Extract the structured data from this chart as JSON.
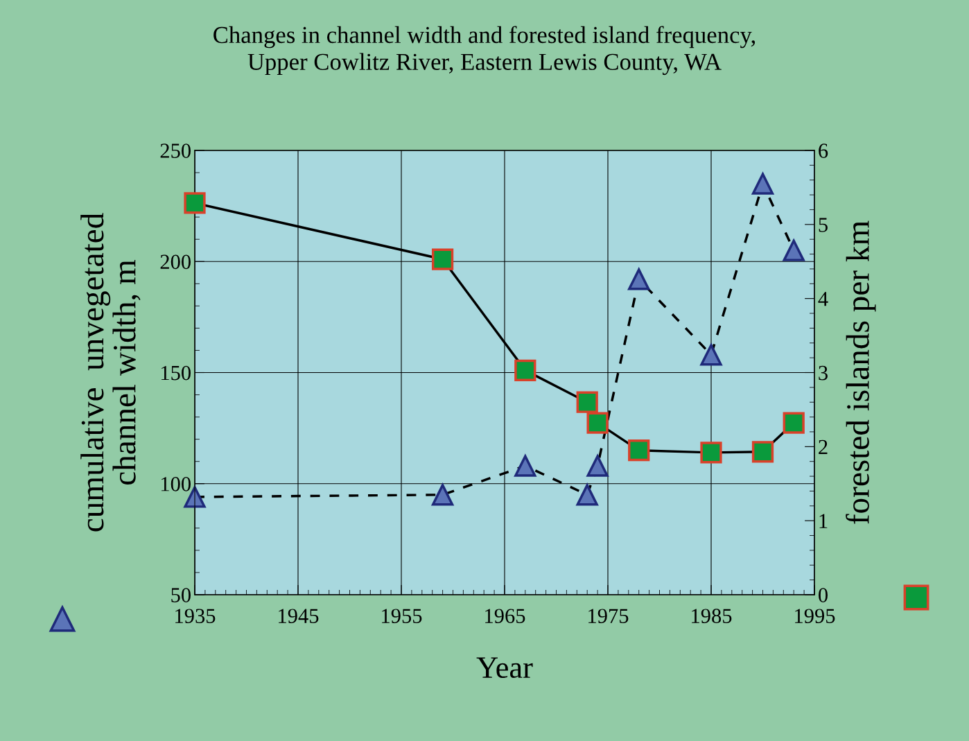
{
  "chart_data": {
    "type": "line",
    "title": "Changes in channel width and forested island frequency,\nUpper Cowlitz River, Eastern Lewis County, WA",
    "xlabel": "Year",
    "ylabel": "cumulative  unvegetated\nchannel width, m",
    "y2label": "forested islands per km",
    "xlim": [
      1935,
      1995
    ],
    "xticks": [
      1935,
      1945,
      1955,
      1965,
      1975,
      1985,
      1995
    ],
    "ylim": [
      50,
      250
    ],
    "yticks": [
      50,
      100,
      150,
      200,
      250
    ],
    "y2lim": [
      0,
      6
    ],
    "y2ticks": [
      0,
      1,
      2,
      3,
      4,
      5,
      6
    ],
    "grid": true,
    "legend": false,
    "series": [
      {
        "color": "#5b74b8",
        "marker": "triangle",
        "line_style": "dashed",
        "x": [
          1935,
          1959,
          1967,
          1973,
          1974,
          1978,
          1985,
          1990,
          1993
        ],
        "values": [
          94,
          95,
          108,
          95,
          108,
          192,
          158,
          235,
          205
        ]
      },
      {
        "color": "#0a9a3c",
        "marker": "square",
        "line_style": "solid",
        "axis": "y2",
        "x": [
          1935,
          1959,
          1967,
          1973,
          1974,
          1978,
          1985,
          1990,
          1993
        ],
        "values": [
          5.29,
          4.53,
          3.03,
          2.6,
          2.32,
          1.95,
          1.92,
          1.93,
          2.32
        ]
      }
    ]
  }
}
